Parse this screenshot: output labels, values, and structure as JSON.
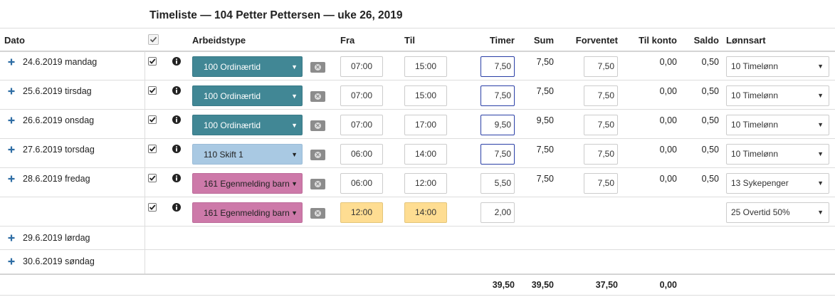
{
  "title": "Timeliste — 104 Petter Pettersen — uke 26, 2019",
  "headers": {
    "dato": "Dato",
    "arbeidstype": "Arbeidstype",
    "fra": "Fra",
    "til": "Til",
    "timer": "Timer",
    "sum": "Sum",
    "forventet": "Forventet",
    "til_konto": "Til konto",
    "saldo": "Saldo",
    "lonnsart": "Lønnsart"
  },
  "rows": [
    {
      "date": "24.6.2019 mandag",
      "checked": true,
      "arbeidstype": "100 Ordinærtid",
      "color": "teal",
      "fra": "07:00",
      "til": "15:00",
      "timer": "7,50",
      "timer_focus": true,
      "sum": "7,50",
      "forventet": "7,50",
      "til_konto": "0,00",
      "saldo": "0,50",
      "lonnsart": "10 Timelønn"
    },
    {
      "date": "25.6.2019 tirsdag",
      "checked": true,
      "arbeidstype": "100 Ordinærtid",
      "color": "teal",
      "fra": "07:00",
      "til": "15:00",
      "timer": "7,50",
      "timer_focus": true,
      "sum": "7,50",
      "forventet": "7,50",
      "til_konto": "0,00",
      "saldo": "0,50",
      "lonnsart": "10 Timelønn"
    },
    {
      "date": "26.6.2019 onsdag",
      "checked": true,
      "arbeidstype": "100 Ordinærtid",
      "color": "teal",
      "fra": "07:00",
      "til": "17:00",
      "timer": "9,50",
      "timer_focus": true,
      "sum": "9,50",
      "forventet": "7,50",
      "til_konto": "0,00",
      "saldo": "0,50",
      "lonnsart": "10 Timelønn"
    },
    {
      "date": "27.6.2019 torsdag",
      "checked": true,
      "arbeidstype": "110 Skift 1",
      "color": "blue",
      "fra": "06:00",
      "til": "14:00",
      "timer": "7,50",
      "timer_focus": true,
      "sum": "7,50",
      "forventet": "7,50",
      "til_konto": "0,00",
      "saldo": "0,50",
      "lonnsart": "10 Timelønn"
    },
    {
      "date": "28.6.2019 fredag",
      "checked": true,
      "arbeidstype": "161 Egenmelding barn",
      "color": "pink",
      "fra": "06:00",
      "til": "12:00",
      "timer": "5,50",
      "timer_focus": false,
      "sum": "7,50",
      "forventet": "7,50",
      "til_konto": "0,00",
      "saldo": "0,50",
      "lonnsart": "13 Sykepenger"
    },
    {
      "date": "",
      "checked": true,
      "arbeidstype": "161 Egenmelding barn",
      "color": "pink",
      "fra": "12:00",
      "til": "14:00",
      "yellow": true,
      "timer": "2,00",
      "timer_focus": false,
      "sum": "",
      "forventet": "",
      "til_konto": "",
      "saldo": "",
      "lonnsart": "25 Overtid 50%"
    }
  ],
  "empty_days": [
    "29.6.2019 lørdag",
    "30.6.2019 søndag"
  ],
  "totals": {
    "timer": "39,50",
    "sum": "39,50",
    "forventet": "37,50",
    "til_konto": "0,00"
  },
  "colors": {
    "teal": "#418795",
    "blue": "#a9c9e3",
    "pink": "#cd79a9",
    "yellow": "#fedd92",
    "focus": "#2a3fa6",
    "plus": "#2e6da4"
  },
  "icons": {
    "expand": "plus-icon",
    "info": "info-icon",
    "delete": "remove-icon",
    "dropdown": "caret-down-icon",
    "check": "checkmark-icon"
  }
}
